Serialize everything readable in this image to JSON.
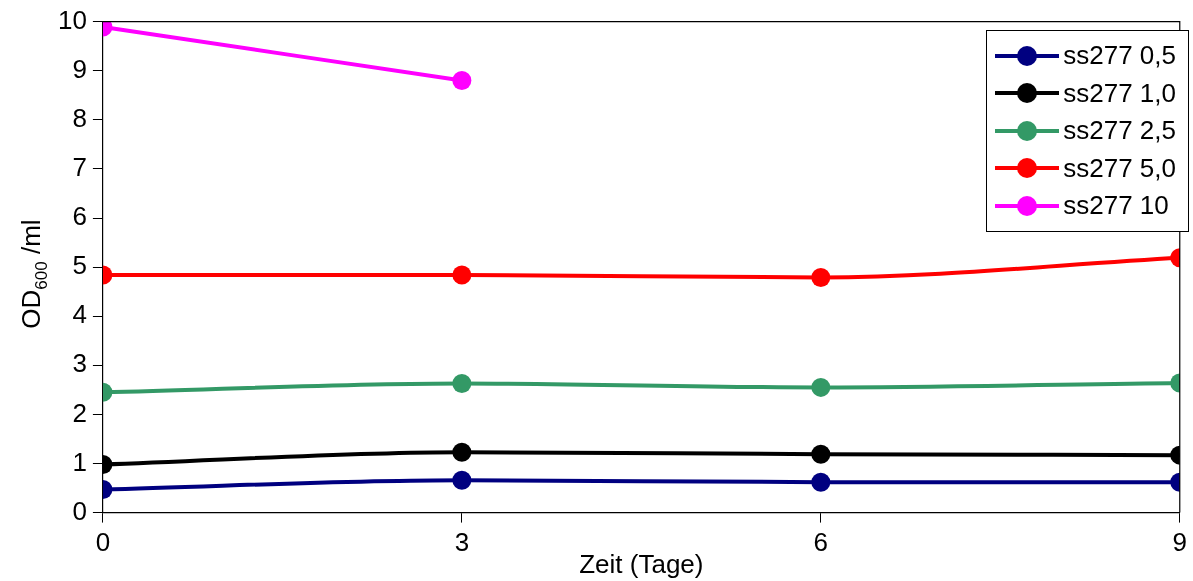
{
  "chart_data": {
    "type": "line",
    "xlabel": "Zeit (Tage)",
    "ylabel": "OD$_{600}$ /ml",
    "x": [
      0,
      3,
      6,
      9
    ],
    "xlim": [
      0,
      9
    ],
    "xticks": [
      0,
      3,
      6,
      9
    ],
    "ylim": [
      0,
      10
    ],
    "yticks": [
      0,
      1,
      2,
      3,
      4,
      5,
      6,
      7,
      8,
      9,
      10
    ],
    "grid": false,
    "legend": "top right",
    "marker": "circle",
    "line_style": "solid",
    "series": [
      {
        "name": "ss277 0,5",
        "color": "#000080",
        "values": [
          0.47,
          0.66,
          0.62,
          0.62
        ]
      },
      {
        "name": "ss277 1,0",
        "color": "#000000",
        "values": [
          0.98,
          1.23,
          1.19,
          1.17
        ]
      },
      {
        "name": "ss277 2,5",
        "color": "#339966",
        "values": [
          2.45,
          2.63,
          2.55,
          2.64
        ]
      },
      {
        "name": "ss277 5,0",
        "color": "#ff0000",
        "values": [
          4.84,
          4.84,
          4.79,
          5.19
        ]
      },
      {
        "name": "ss277 10",
        "color": "#ff00ff",
        "values": [
          9.89,
          8.8,
          null,
          null
        ]
      }
    ]
  }
}
